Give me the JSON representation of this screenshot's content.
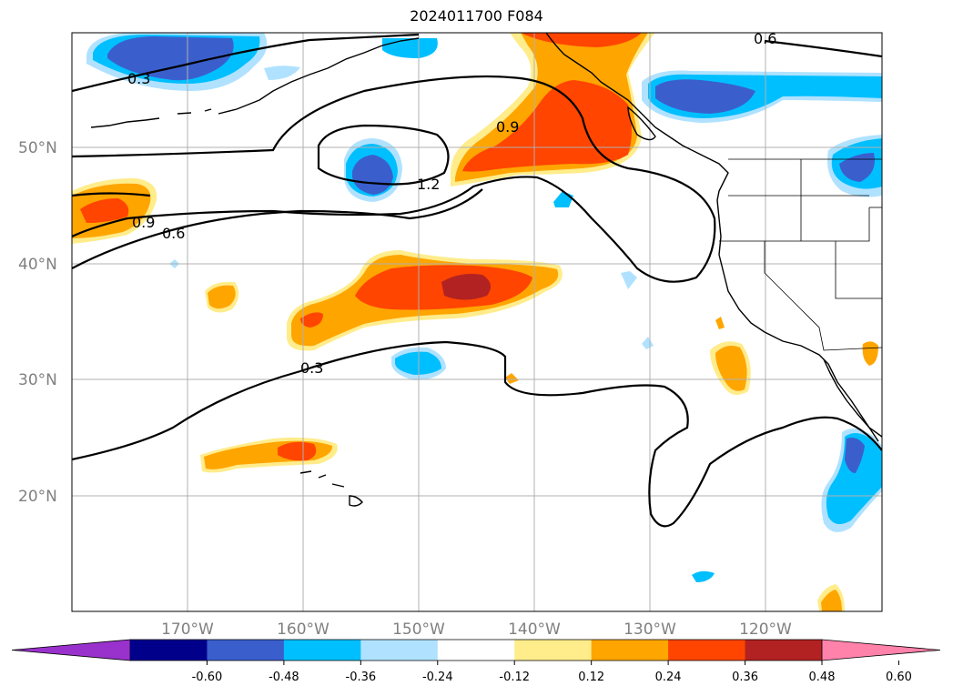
{
  "title": "2024011700 F084",
  "map": {
    "lat_labels": [
      "50°N",
      "40°N",
      "30°N",
      "20°N"
    ],
    "lon_labels": [
      "170°W",
      "160°W",
      "150°W",
      "140°W",
      "130°W",
      "120°W"
    ],
    "contour_labels": [
      "0.3",
      "0.6",
      "0.9",
      "1.2",
      "0.9",
      "0.6",
      "0.3"
    ]
  },
  "colorbar": {
    "ticks": [
      "-0.60",
      "-0.48",
      "-0.36",
      "-0.24",
      "-0.12",
      "0.12",
      "0.24",
      "0.36",
      "0.48",
      "0.60"
    ],
    "colors": [
      "#9932cc",
      "#00008b",
      "#3a5fcd",
      "#00bfff",
      "#b0e2ff",
      "#ffffff",
      "#ffec8b",
      "#ffa500",
      "#ff4500",
      "#b22222",
      "#ff82ab"
    ]
  }
}
